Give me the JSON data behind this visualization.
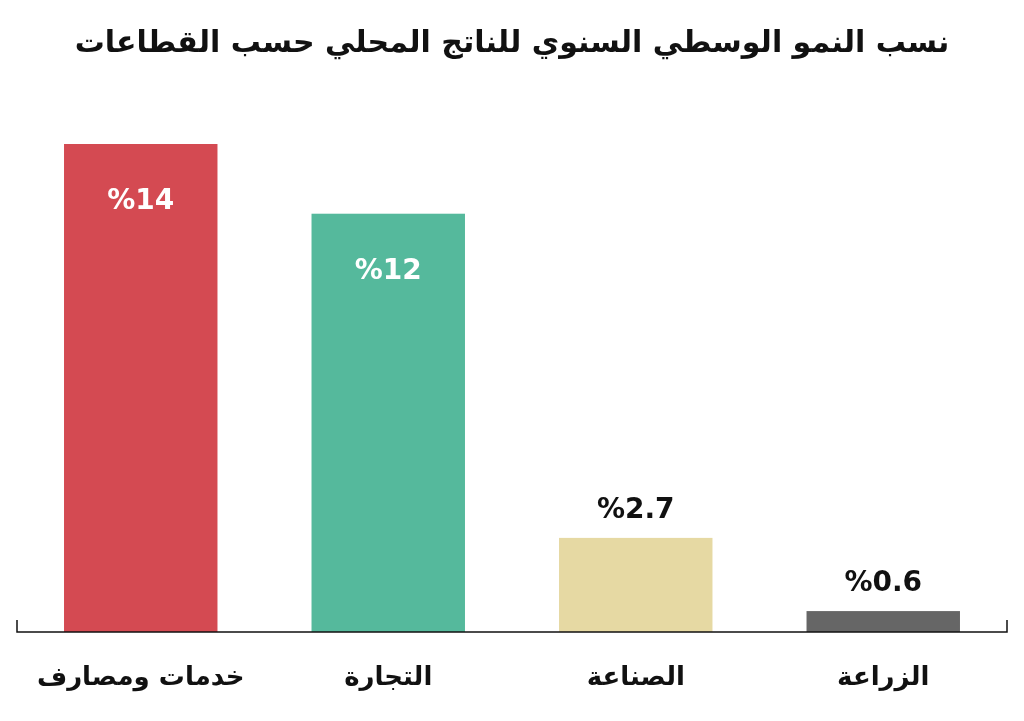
{
  "chart_data": {
    "type": "bar",
    "title": "نسب النمو الوسطي السنوي للناتج المحلي حسب القطاعات",
    "categories": [
      "خدمات ومصارف",
      "التجارة",
      "الصناعة",
      "الزراعة"
    ],
    "values": [
      14,
      12,
      2.7,
      0.6
    ],
    "colors": [
      "#d44a52",
      "#55b99c",
      "#e6d9a3",
      "#666666"
    ],
    "value_labels": [
      "%14",
      "%12",
      "%2.7",
      "%0.6"
    ]
  }
}
